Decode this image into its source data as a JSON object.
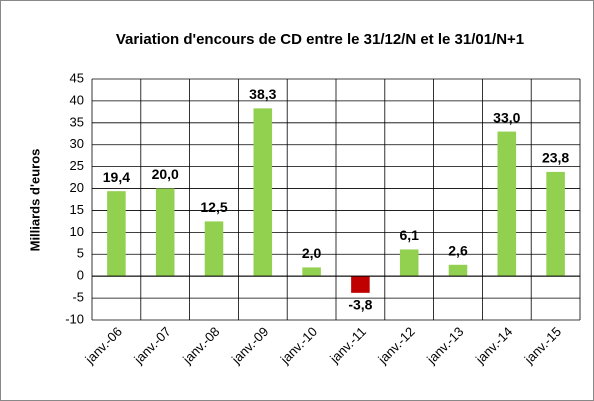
{
  "chart_data": {
    "type": "bar",
    "title": "Variation d'encours de CD entre le 31/12/N  et le 31/01/N+1",
    "y_label": "Milliards  d'euros",
    "categories": [
      "janv.-06",
      "janv.-07",
      "janv.-08",
      "janv.-09",
      "janv.-10",
      "janv.-11",
      "janv.-12",
      "janv.-13",
      "janv.-14",
      "janv.-15"
    ],
    "values": [
      19.4,
      20.0,
      12.5,
      38.3,
      2.0,
      -3.8,
      6.1,
      2.6,
      33.0,
      23.8
    ],
    "value_labels": [
      "19,4",
      "20,0",
      "12,5",
      "38,3",
      "2,0",
      "-3,8",
      "6,1",
      "2,6",
      "33,0",
      "23,8"
    ],
    "colors": [
      "#92d050",
      "#92d050",
      "#92d050",
      "#92d050",
      "#92d050",
      "#c00000",
      "#92d050",
      "#92d050",
      "#92d050",
      "#92d050"
    ],
    "ylim": [
      -10,
      45
    ],
    "yticks": [
      -10,
      -5,
      0,
      5,
      10,
      15,
      20,
      25,
      30,
      35,
      40,
      45
    ],
    "grid": true
  }
}
